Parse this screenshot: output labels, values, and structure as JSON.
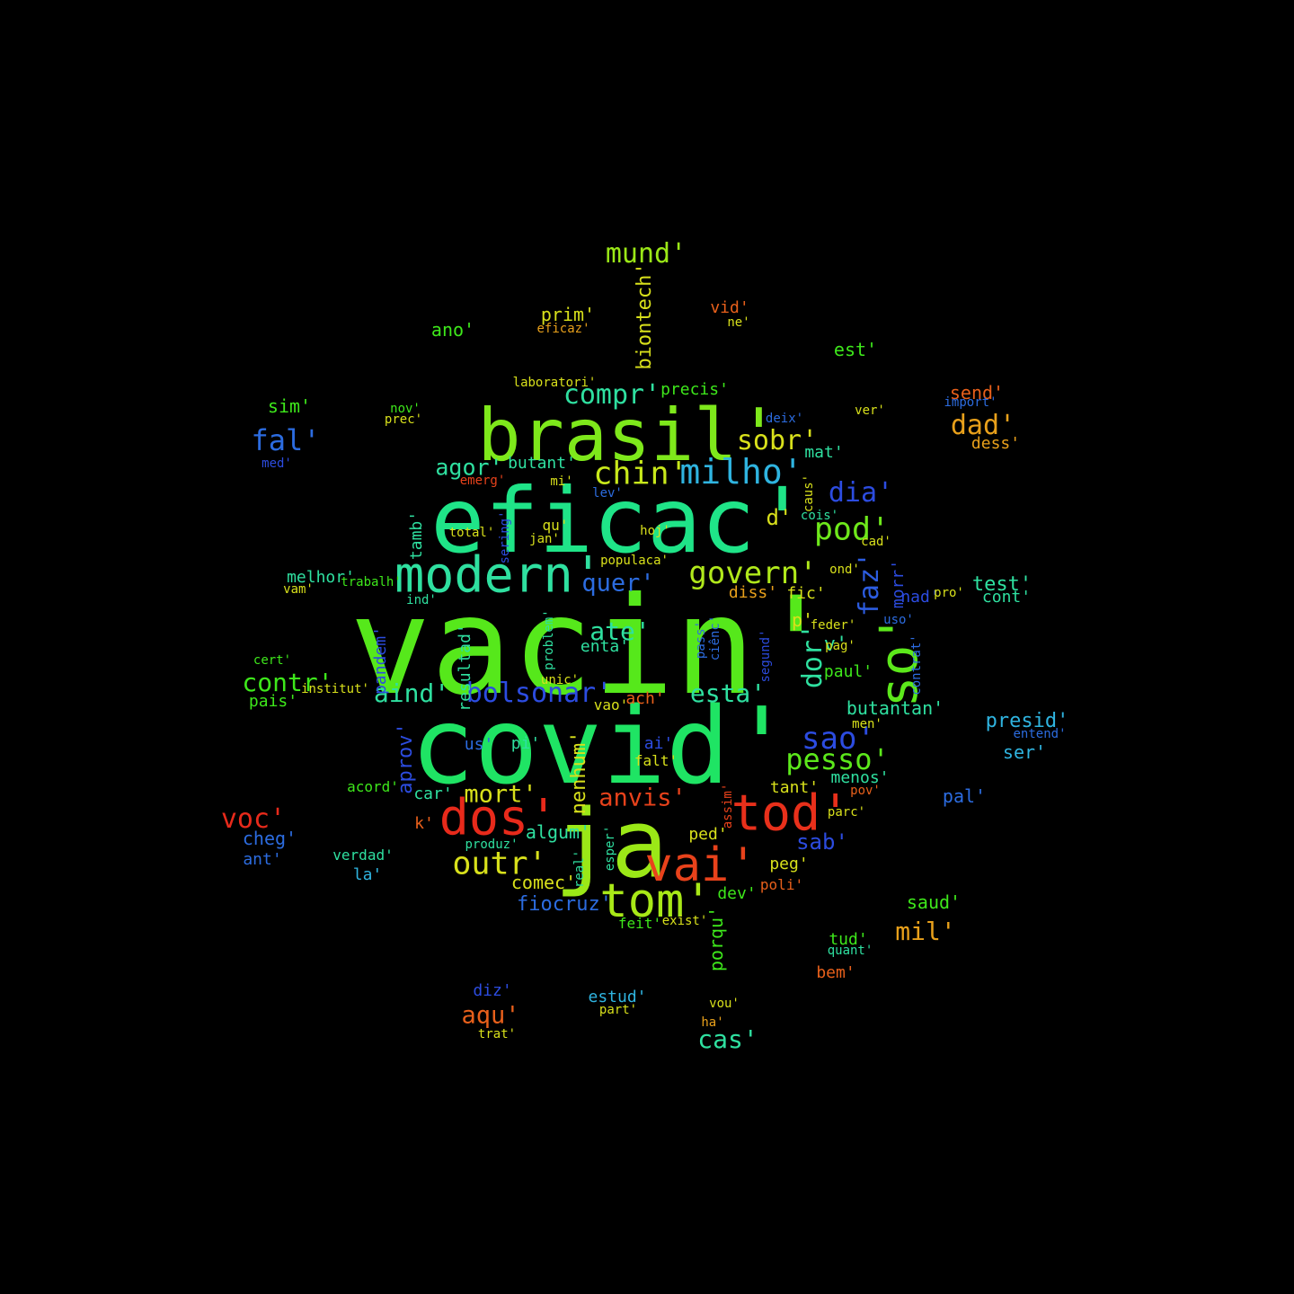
{
  "words": [
    {
      "text": "vacin'",
      "color": "#56e81b"
    },
    {
      "text": "covid'",
      "color": "#1fe464"
    },
    {
      "text": "eficac'",
      "color": "#1fe488"
    },
    {
      "text": "brasil'",
      "color": "#7ee81b"
    },
    {
      "text": "ja",
      "color": "#9be817"
    },
    {
      "text": "modern'",
      "color": "#2fe0a0"
    },
    {
      "text": "dos'",
      "color": "#e82a1b"
    },
    {
      "text": "tod'",
      "color": "#e8301b"
    },
    {
      "text": "tom'",
      "color": "#a8e817"
    },
    {
      "text": "so'",
      "color": "#5ce81b"
    },
    {
      "text": "vai'",
      "color": "#e8421b"
    },
    {
      "text": "milho'",
      "color": "#2fb4e0"
    },
    {
      "text": "chin'",
      "color": "#c8e81b"
    },
    {
      "text": "govern'",
      "color": "#b0e81b"
    },
    {
      "text": "pod'",
      "color": "#6ee81b"
    },
    {
      "text": "outr'",
      "color": "#d8e01b"
    },
    {
      "text": "sao'",
      "color": "#2c4ce0"
    },
    {
      "text": "pesso'",
      "color": "#5ce81b"
    },
    {
      "text": "mund'",
      "color": "#9be817"
    },
    {
      "text": "compr'",
      "color": "#2fe0a0"
    },
    {
      "text": "bolsonar'",
      "color": "#2c4ce0"
    },
    {
      "text": "aind'",
      "color": "#2fe0a0"
    },
    {
      "text": "contr'",
      "color": "#3ee81b"
    },
    {
      "text": "fal'",
      "color": "#2c6ce0"
    },
    {
      "text": "voc'",
      "color": "#e82a1b"
    },
    {
      "text": "dad'",
      "color": "#e8a01b"
    },
    {
      "text": "sobr'",
      "color": "#d8e01b"
    },
    {
      "text": "agor'",
      "color": "#2fe0a0"
    },
    {
      "text": "dia'",
      "color": "#2c4ce0"
    },
    {
      "text": "faz'",
      "color": "#2c5ce0"
    },
    {
      "text": "dor'",
      "color": "#2fe0a0"
    },
    {
      "text": "esta'",
      "color": "#2fe0a0"
    },
    {
      "text": "anvis'",
      "color": "#e8421b"
    },
    {
      "text": "mort'",
      "color": "#d8e01b"
    },
    {
      "text": "ate'",
      "color": "#2fe0a0"
    },
    {
      "text": "quer'",
      "color": "#2c6ce0"
    },
    {
      "text": "cas'",
      "color": "#2fe0a0"
    },
    {
      "text": "aqu'",
      "color": "#e8601b"
    },
    {
      "text": "mil'",
      "color": "#e8a01b"
    },
    {
      "text": "fiocruz'",
      "color": "#2c6ce0"
    },
    {
      "text": "sab'",
      "color": "#2c4ce0"
    },
    {
      "text": "butantan'",
      "color": "#2fe0a0"
    },
    {
      "text": "presid'",
      "color": "#2fb4e0"
    },
    {
      "text": "test'",
      "color": "#2fe0a0"
    },
    {
      "text": "send'",
      "color": "#e8601b"
    },
    {
      "text": "biontech'",
      "color": "#d8e01b"
    },
    {
      "text": "prim'",
      "color": "#d8e01b"
    },
    {
      "text": "ano'",
      "color": "#3ee81b"
    },
    {
      "text": "sim'",
      "color": "#3ee81b"
    },
    {
      "text": "aprov'",
      "color": "#2c4ce0"
    },
    {
      "text": "nenhum'",
      "color": "#d8e01b"
    },
    {
      "text": "comec'",
      "color": "#d8e01b"
    },
    {
      "text": "algum'",
      "color": "#2fe0a0"
    },
    {
      "text": "porqu'",
      "color": "#3ee81b"
    },
    {
      "text": "saud'",
      "color": "#3ee81b"
    },
    {
      "text": "tud'",
      "color": "#3ee81b"
    },
    {
      "text": "bem'",
      "color": "#e8601b"
    },
    {
      "text": "estud'",
      "color": "#2fb4e0"
    },
    {
      "text": "diz'",
      "color": "#2c4ce0"
    },
    {
      "text": "est'",
      "color": "#3ee81b"
    },
    {
      "text": "vid'",
      "color": "#e8601b"
    },
    {
      "text": "paul'",
      "color": "#3ee81b"
    },
    {
      "text": "melhor'",
      "color": "#2fe0a0"
    },
    {
      "text": "pais'",
      "color": "#3ee81b"
    },
    {
      "text": "cheg'",
      "color": "#2c6ce0"
    },
    {
      "text": "ant'",
      "color": "#2c6ce0"
    },
    {
      "text": "la'",
      "color": "#2fb4e0"
    },
    {
      "text": "verdad'",
      "color": "#2fe0a0"
    },
    {
      "text": "car'",
      "color": "#2fe0a0"
    },
    {
      "text": "us'",
      "color": "#2c6ce0"
    },
    {
      "text": "pi'",
      "color": "#2fe0a0"
    },
    {
      "text": "ai'",
      "color": "#2c4ce0"
    },
    {
      "text": "falt'",
      "color": "#d8e01b"
    },
    {
      "text": "ach'",
      "color": "#e8601b"
    },
    {
      "text": "vao'",
      "color": "#d8e01b"
    },
    {
      "text": "enta'",
      "color": "#2fe0a0"
    },
    {
      "text": "resultad'",
      "color": "#2fe0a0"
    },
    {
      "text": "pandem'",
      "color": "#2c4ce0"
    },
    {
      "text": "tamb'",
      "color": "#2fe0a0"
    },
    {
      "text": "qu'",
      "color": "#d8e01b"
    },
    {
      "text": "d'",
      "color": "#d8e01b"
    },
    {
      "text": "v'",
      "color": "#2fe0a0"
    },
    {
      "text": "p'",
      "color": "#d8e01b"
    },
    {
      "text": "fic'",
      "color": "#d8e01b"
    },
    {
      "text": "diss'",
      "color": "#e8a01b"
    },
    {
      "text": "ser'",
      "color": "#2fb4e0"
    },
    {
      "text": "dess'",
      "color": "#e8a01b"
    },
    {
      "text": "cont'",
      "color": "#2fe0a0"
    },
    {
      "text": "nad'",
      "color": "#2c4ce0"
    },
    {
      "text": "mat'",
      "color": "#2fe0a0"
    },
    {
      "text": "precis'",
      "color": "#3ee81b"
    },
    {
      "text": "butant'",
      "color": "#2fe0a0"
    },
    {
      "text": "morr'",
      "color": "#2c4ce0"
    },
    {
      "text": "tant'",
      "color": "#d8e01b"
    },
    {
      "text": "menos'",
      "color": "#2fe0a0"
    },
    {
      "text": "ped'",
      "color": "#d8e01b"
    },
    {
      "text": "feit'",
      "color": "#3ee81b"
    },
    {
      "text": "dev'",
      "color": "#3ee81b"
    },
    {
      "text": "peg'",
      "color": "#d8e01b"
    },
    {
      "text": "poli'",
      "color": "#e8601b"
    },
    {
      "text": "pal'",
      "color": "#2c6ce0"
    },
    {
      "text": "k'",
      "color": "#e8601b"
    },
    {
      "text": "acord'",
      "color": "#3ee81b"
    },
    {
      "text": "institut'",
      "color": "#d8e01b"
    },
    {
      "text": "trabalh'",
      "color": "#3ee81b"
    },
    {
      "text": "ind'",
      "color": "#2fe0a0"
    },
    {
      "text": "hoj'",
      "color": "#d8e01b"
    },
    {
      "text": "mi'",
      "color": "#d8e01b"
    },
    {
      "text": "lev'",
      "color": "#2c6ce0"
    },
    {
      "text": "laboratori'",
      "color": "#d8e01b"
    },
    {
      "text": "eficaz'",
      "color": "#e8a01b"
    },
    {
      "text": "ne'",
      "color": "#d8e01b"
    },
    {
      "text": "deix'",
      "color": "#2c6ce0"
    },
    {
      "text": "ver'",
      "color": "#d8e01b"
    },
    {
      "text": "nov'",
      "color": "#3ee81b"
    },
    {
      "text": "prec'",
      "color": "#d8e01b"
    },
    {
      "text": "med'",
      "color": "#2c4ce0"
    },
    {
      "text": "cert'",
      "color": "#3ee81b"
    },
    {
      "text": "vam'",
      "color": "#d8e01b"
    },
    {
      "text": "feder'",
      "color": "#d8e01b"
    },
    {
      "text": "pag'",
      "color": "#d8e01b"
    },
    {
      "text": "emerg'",
      "color": "#e8421b"
    },
    {
      "text": "total'",
      "color": "#d8e01b"
    },
    {
      "text": "jan'",
      "color": "#d8e01b"
    },
    {
      "text": "ond'",
      "color": "#d8e01b"
    },
    {
      "text": "cad'",
      "color": "#d8e01b"
    },
    {
      "text": "cois'",
      "color": "#2fe0a0"
    },
    {
      "text": "produz'",
      "color": "#2fe0a0"
    },
    {
      "text": "part'",
      "color": "#d8e01b"
    },
    {
      "text": "trat'",
      "color": "#d8e01b"
    },
    {
      "text": "ha'",
      "color": "#e8a01b"
    },
    {
      "text": "real'",
      "color": "#2fe0a0"
    },
    {
      "text": "esper'",
      "color": "#2fe0a0"
    },
    {
      "text": "vou'",
      "color": "#d8e01b"
    },
    {
      "text": "caus'",
      "color": "#d8e01b"
    },
    {
      "text": "assim'",
      "color": "#e8421b"
    },
    {
      "text": "pov'",
      "color": "#e8601b"
    },
    {
      "text": "parc'",
      "color": "#d8e01b"
    },
    {
      "text": "quant'",
      "color": "#2fe0a0"
    },
    {
      "text": "exist'",
      "color": "#d8e01b"
    },
    {
      "text": "pass'",
      "color": "#2c6ce0"
    },
    {
      "text": "ciênc'",
      "color": "#2c6ce0"
    },
    {
      "text": "segund'",
      "color": "#2c4ce0"
    },
    {
      "text": "contrat'",
      "color": "#2c6ce0"
    },
    {
      "text": "men'",
      "color": "#d8e01b"
    },
    {
      "text": "populaca'",
      "color": "#d8e01b"
    },
    {
      "text": "sering'",
      "color": "#2c4ce0"
    },
    {
      "text": "uso'",
      "color": "#2c6ce0"
    },
    {
      "text": "problem'",
      "color": "#2fe0a0"
    },
    {
      "text": "unic'",
      "color": "#d8e01b"
    },
    {
      "text": "import'",
      "color": "#2c6ce0"
    },
    {
      "text": "entend'",
      "color": "#2c6ce0"
    },
    {
      "text": "pro'",
      "color": "#d8e01b"
    }
  ]
}
